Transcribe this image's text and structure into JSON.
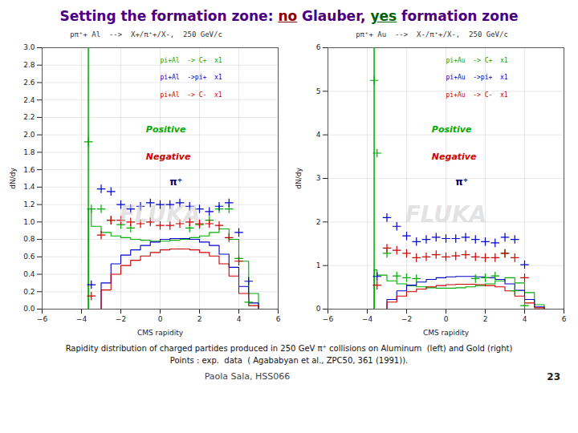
{
  "title_parts": [
    {
      "text": "Setting the formation zone: ",
      "color": "#4B0082",
      "underline": false
    },
    {
      "text": "no",
      "color": "#8B0000",
      "underline": true
    },
    {
      "text": " Glauber, ",
      "color": "#4B0082",
      "underline": false
    },
    {
      "text": "yes",
      "color": "#006400",
      "underline": true
    },
    {
      "text": " formation zone",
      "color": "#4B0082",
      "underline": false
    }
  ],
  "caption": [
    "Rapidity distribution of charged partides produced in 250 GeV π⁺ collisions on Aluminum  (left) and Gold (right)",
    "Points : exp.  data  ( Agababyan et al., ZPC50, 361 (1991))."
  ],
  "footer": [
    "Paola Sala, HSS066",
    "23"
  ],
  "chart_data": [
    {
      "type": "line",
      "title": "pπ⁺+ Al  -->  X+/π⁺+/X-,  250 GeV/c",
      "xlabel": "CMS rapidity",
      "ylabel": "dN/dy",
      "xlim": [
        -6,
        6
      ],
      "ylim": [
        0,
        3
      ],
      "xticks": [
        -6,
        -4,
        -2,
        0,
        2,
        4,
        6
      ],
      "yticks": [
        {
          "value": 0,
          "label": "0.0"
        },
        0.2,
        0.4,
        0.6,
        0.8,
        {
          "value": 1,
          "label": "1.0"
        },
        1.2,
        1.4,
        1.6,
        1.8,
        {
          "value": 2,
          "label": "2.0"
        },
        2.2,
        2.4,
        2.6,
        2.8,
        {
          "value": 3,
          "label": "3.0"
        }
      ],
      "grid": true,
      "legend": "upper right",
      "series": [
        {
          "name": "pi+Al  -> C+  x1",
          "type": "step",
          "color": "#00aa00",
          "x": [
            -3.65,
            -3.65,
            -3.5,
            -3.0,
            -2.5,
            -2.0,
            -1.5,
            -1.0,
            -0.5,
            0.0,
            0.5,
            1.0,
            1.5,
            2.0,
            2.5,
            3.0,
            3.5,
            4.0,
            4.5,
            5.0
          ],
          "values": [
            0.0,
            1.15,
            0.95,
            0.88,
            0.84,
            0.82,
            0.8,
            0.79,
            0.78,
            0.78,
            0.79,
            0.8,
            0.82,
            0.84,
            0.88,
            0.92,
            0.8,
            0.55,
            0.18,
            0.02
          ]
        },
        {
          "name": "pi+Al  ->pi+  x1",
          "type": "step",
          "color": "#0000cc",
          "x": [
            -3.65,
            -3.5,
            -3.0,
            -2.5,
            -2.0,
            -1.5,
            -1.0,
            -0.5,
            0.0,
            0.5,
            1.0,
            1.5,
            2.0,
            2.5,
            3.0,
            3.5,
            4.0,
            4.5,
            5.0
          ],
          "values": [
            0.0,
            0.0,
            0.3,
            0.52,
            0.62,
            0.68,
            0.73,
            0.77,
            0.8,
            0.81,
            0.81,
            0.8,
            0.77,
            0.73,
            0.63,
            0.48,
            0.26,
            0.07,
            0.01
          ]
        },
        {
          "name": "pi+Al  -> C-  x1",
          "type": "step",
          "color": "#cc0000",
          "x": [
            -3.65,
            -3.5,
            -3.0,
            -2.5,
            -2.0,
            -1.5,
            -1.0,
            -0.5,
            0.0,
            0.5,
            1.0,
            1.5,
            2.0,
            2.5,
            3.0,
            3.5,
            4.0,
            4.5,
            5.0
          ],
          "values": [
            0.0,
            0.0,
            0.22,
            0.4,
            0.5,
            0.56,
            0.61,
            0.65,
            0.68,
            0.69,
            0.69,
            0.68,
            0.65,
            0.61,
            0.52,
            0.38,
            0.18,
            0.04,
            0.005
          ]
        },
        {
          "type": "scatter",
          "marker": "plus",
          "color": "#00aa00",
          "x": [
            -3.65,
            -3.5,
            -3.0,
            -2.5,
            -2.0,
            -1.5,
            1.5,
            2.0,
            2.5,
            3.0,
            3.5,
            4.0,
            4.5
          ],
          "values": [
            1.92,
            1.15,
            1.15,
            1.02,
            0.97,
            0.93,
            0.93,
            0.97,
            1.02,
            1.15,
            1.15,
            0.58,
            0.08
          ]
        },
        {
          "type": "scatter",
          "marker": "plus",
          "color": "#0000cc",
          "x": [
            -3.5,
            -3.0,
            -2.5,
            -2.0,
            -1.5,
            -1.0,
            -0.5,
            0.0,
            0.5,
            1.0,
            1.5,
            2.0,
            2.5,
            3.0,
            3.5,
            4.0,
            4.5
          ],
          "values": [
            0.28,
            1.38,
            1.35,
            1.2,
            1.15,
            1.18,
            1.22,
            1.2,
            1.2,
            1.22,
            1.18,
            1.15,
            1.12,
            1.18,
            1.22,
            0.88,
            0.32
          ]
        },
        {
          "type": "scatter",
          "marker": "plus",
          "color": "#cc0000",
          "x": [
            -3.5,
            -3.0,
            -2.5,
            -2.0,
            -1.5,
            -1.0,
            -0.5,
            0.0,
            0.5,
            1.0,
            1.5,
            2.0,
            2.5,
            3.0,
            3.5,
            4.0
          ],
          "values": [
            0.15,
            0.85,
            1.02,
            1.02,
            1.0,
            0.98,
            1.0,
            0.96,
            0.96,
            0.98,
            1.0,
            0.98,
            0.98,
            0.96,
            0.82,
            0.55
          ]
        }
      ],
      "vline": {
        "x": -3.65,
        "color": "#00aa00"
      },
      "annotations": [
        {
          "text": "Positive",
          "color": "#00aa00"
        },
        {
          "text": "Negative",
          "color": "#cc0000"
        },
        {
          "text": "π⁺",
          "color": "#000066"
        },
        {
          "text": "FLUKA",
          "color": "#cccccc"
        }
      ]
    },
    {
      "type": "line",
      "title": "pπ⁺+ Au  -->  X-/π⁺+/X-,  250 GeV/c",
      "xlabel": "CMS rapidity",
      "ylabel": "dN/dy",
      "xlim": [
        -6,
        6
      ],
      "ylim": [
        0,
        6
      ],
      "xticks": [
        -6,
        -4,
        -2,
        0,
        2,
        4,
        6
      ],
      "yticks": [
        0,
        1,
        2,
        3,
        4,
        5,
        6
      ],
      "grid": true,
      "legend": "upper right",
      "series": [
        {
          "name": "pi+Au  -> C+  x1",
          "type": "step",
          "color": "#00aa00",
          "x": [
            -3.65,
            -3.65,
            -3.5,
            -3.0,
            -2.5,
            -2.0,
            -1.5,
            -1.0,
            -0.5,
            0.0,
            0.5,
            1.0,
            1.5,
            2.0,
            2.5,
            3.0,
            3.5,
            4.0,
            4.5,
            5.0
          ],
          "values": [
            0.0,
            0.9,
            0.78,
            0.65,
            0.58,
            0.54,
            0.51,
            0.49,
            0.48,
            0.48,
            0.49,
            0.51,
            0.54,
            0.58,
            0.65,
            0.72,
            0.6,
            0.38,
            0.1,
            0.01
          ]
        },
        {
          "name": "pi+Au  ->pi+  x1",
          "type": "step",
          "color": "#0000cc",
          "x": [
            -3.65,
            -3.5,
            -3.0,
            -2.5,
            -2.0,
            -1.5,
            -1.0,
            -0.5,
            0.0,
            0.5,
            1.0,
            1.5,
            2.0,
            2.5,
            3.0,
            3.5,
            4.0,
            4.5,
            5.0
          ],
          "values": [
            0.0,
            0.0,
            0.22,
            0.42,
            0.55,
            0.62,
            0.68,
            0.72,
            0.74,
            0.75,
            0.75,
            0.74,
            0.72,
            0.68,
            0.58,
            0.43,
            0.22,
            0.05,
            0.004
          ]
        },
        {
          "name": "pi+Au  -> C-  x1",
          "type": "step",
          "color": "#cc0000",
          "x": [
            -3.65,
            -3.5,
            -3.0,
            -2.5,
            -2.0,
            -1.5,
            -1.0,
            -0.5,
            0.0,
            0.5,
            1.0,
            1.5,
            2.0,
            2.5,
            3.0,
            3.5,
            4.0,
            4.5,
            5.0
          ],
          "values": [
            0.0,
            0.0,
            0.16,
            0.3,
            0.4,
            0.46,
            0.51,
            0.54,
            0.56,
            0.57,
            0.57,
            0.56,
            0.54,
            0.51,
            0.42,
            0.3,
            0.14,
            0.03,
            0.002
          ]
        },
        {
          "type": "scatter",
          "marker": "plus",
          "color": "#00aa00",
          "x": [
            -3.65,
            -3.5,
            -3.0,
            -2.5,
            -2.0,
            -1.5,
            1.5,
            2.0,
            2.5,
            3.0,
            3.5,
            4.0
          ],
          "values": [
            5.25,
            3.58,
            1.28,
            0.76,
            0.72,
            0.7,
            0.7,
            0.72,
            0.76,
            1.28,
            0.42,
            0.08
          ]
        },
        {
          "type": "scatter",
          "marker": "plus",
          "color": "#0000cc",
          "x": [
            -3.5,
            -3.0,
            -2.5,
            -2.0,
            -1.5,
            -1.0,
            -0.5,
            0.0,
            0.5,
            1.0,
            1.5,
            2.0,
            2.5,
            3.0,
            3.5,
            4.0
          ],
          "values": [
            0.75,
            2.1,
            1.9,
            1.68,
            1.55,
            1.6,
            1.65,
            1.62,
            1.62,
            1.65,
            1.6,
            1.55,
            1.52,
            1.65,
            1.6,
            1.02
          ]
        },
        {
          "type": "scatter",
          "marker": "plus",
          "color": "#cc0000",
          "x": [
            -3.5,
            -3.0,
            -2.5,
            -2.0,
            -1.5,
            -1.0,
            -0.5,
            0.0,
            0.5,
            1.0,
            1.5,
            2.0,
            2.5,
            3.0,
            3.5,
            4.0
          ],
          "values": [
            0.55,
            1.4,
            1.35,
            1.28,
            1.18,
            1.2,
            1.25,
            1.2,
            1.22,
            1.25,
            1.2,
            1.18,
            1.18,
            1.28,
            1.18,
            0.72
          ]
        }
      ],
      "vline": {
        "x": -3.65,
        "color": "#00aa00"
      },
      "annotations": [
        {
          "text": "Positive",
          "color": "#00aa00"
        },
        {
          "text": "Negative",
          "color": "#cc0000"
        },
        {
          "text": "π⁺",
          "color": "#000066"
        },
        {
          "text": "FLUKA",
          "color": "#cccccc"
        }
      ]
    }
  ]
}
